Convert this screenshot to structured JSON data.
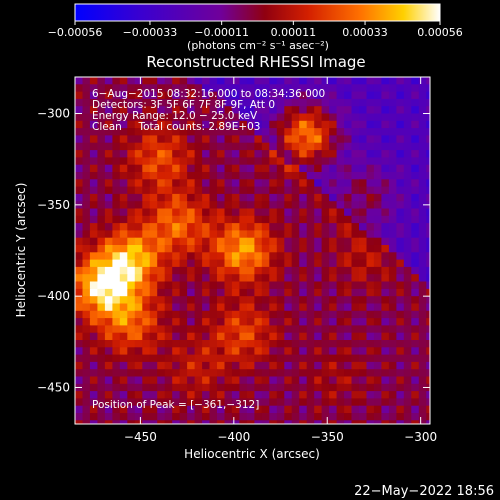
{
  "chart_data": {
    "type": "heatmap",
    "title": "Reconstructed RHESSI Image",
    "xlabel": "Heliocentric X (arcsec)",
    "ylabel": "Heliocentric Y (arcsec)",
    "xlim": [
      -485,
      -295
    ],
    "ylim": [
      -470,
      -280
    ],
    "x_ticks": [
      -450,
      -400,
      -350,
      -300
    ],
    "x_tick_labels": [
      "−450",
      "−400",
      "−350",
      "−300"
    ],
    "y_ticks": [
      -300,
      -350,
      -400,
      -450
    ],
    "y_tick_labels": [
      "−300",
      "−350",
      "−400",
      "−450"
    ],
    "colorbar": {
      "range": [
        -0.00056,
        0.00056
      ],
      "tick_values": [
        -0.00056,
        -0.00033,
        -0.00011,
        0.00011,
        0.00033,
        0.00056
      ],
      "tick_labels": [
        "−0.00056",
        "−0.00033",
        "−0.00011",
        "0.00011",
        "0.00033",
        "0.00056"
      ],
      "units": "(photons cm⁻² s⁻¹ asec⁻²)"
    },
    "annotations": [
      "6−Aug−2015 08:32:16.000 to 08:34:36.000",
      "Detectors: 3F 5F 6F 7F 8F 9F, Att 0",
      "Energy Range: 12.0 − 25.0 keV",
      "Clean     Total counts: 2.89E+03"
    ],
    "peak_label": "Position of Peak = [−361,−312]",
    "peak_position": [
      -361,
      -312
    ],
    "blobs": [
      {
        "x": -361,
        "y": -312,
        "value": 0.00056
      },
      {
        "x": -470,
        "y": -395,
        "value": 0.0005
      },
      {
        "x": -455,
        "y": -380,
        "value": 0.00042
      },
      {
        "x": -395,
        "y": -375,
        "value": 0.0004
      },
      {
        "x": -430,
        "y": -360,
        "value": 0.0003
      },
      {
        "x": -440,
        "y": -325,
        "value": 0.00026
      },
      {
        "x": -455,
        "y": -415,
        "value": 0.00028
      },
      {
        "x": -395,
        "y": -420,
        "value": 0.00024
      },
      {
        "x": -330,
        "y": -345,
        "value": 0.00022
      },
      {
        "x": -330,
        "y": -380,
        "value": 0.00012
      },
      {
        "x": -420,
        "y": -440,
        "value": 0.00014
      },
      {
        "x": -345,
        "y": -445,
        "value": 8e-05
      }
    ]
  },
  "footer": {
    "date": "22−May−2022 18:56"
  },
  "colors": {
    "background": "#000000",
    "colormap": [
      "#0000ff",
      "#4a00c0",
      "#7a0090",
      "#b00000",
      "#e04000",
      "#ff9000",
      "#ffe000",
      "#ffffff"
    ]
  }
}
